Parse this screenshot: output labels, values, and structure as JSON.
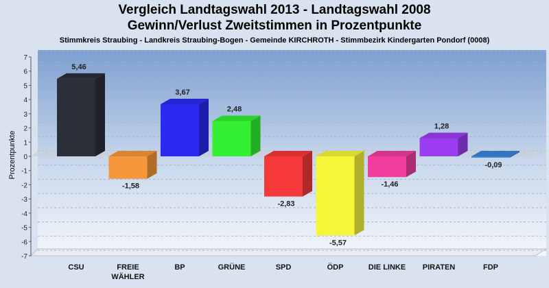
{
  "chart_data": {
    "type": "bar",
    "title": "Vergleich Landtagswahl 2013 - Landtagswahl 2008",
    "subtitle": "Gewinn/Verlust Zweitstimmen in Prozentpunkte",
    "description": "Stimmkreis Straubing - Landkreis Straubing-Bogen - Gemeinde KIRCHROTH - Stimmbezirk Kindergarten Pondorf (0008)",
    "ylabel": "Prozentpunkte",
    "xlabel": "",
    "ylim": [
      -7,
      7
    ],
    "yticks": [
      7,
      6,
      5,
      4,
      3,
      2,
      1,
      0,
      -1,
      -2,
      -3,
      -4,
      -5,
      -6,
      -7
    ],
    "grid": true,
    "categories": [
      "CSU",
      "FREIE WÄHLER",
      "BP",
      "GRÜNE",
      "SPD",
      "ÖDP",
      "DIE LINKE",
      "PIRATEN",
      "FDP"
    ],
    "category_lines": [
      [
        "CSU"
      ],
      [
        "FREIE",
        "WÄHLER"
      ],
      [
        "BP"
      ],
      [
        "GRÜNE"
      ],
      [
        "SPD"
      ],
      [
        "ÖDP"
      ],
      [
        "DIE LINKE"
      ],
      [
        "PIRATEN"
      ],
      [
        "FDP"
      ]
    ],
    "values": [
      5.46,
      -1.58,
      3.67,
      2.48,
      -2.83,
      -5.57,
      -1.46,
      1.28,
      -0.09
    ],
    "value_labels": [
      "5,46",
      "-1,58",
      "3,67",
      "2,48",
      "-2,83",
      "-5,57",
      "-1,46",
      "1,28",
      "-0,09"
    ],
    "colors": [
      "#2b2f3a",
      "#f5973a",
      "#2a2af0",
      "#33f033",
      "#f53838",
      "#f5f53a",
      "#f03c9a",
      "#9a3cf0",
      "#3a84d8"
    ]
  }
}
